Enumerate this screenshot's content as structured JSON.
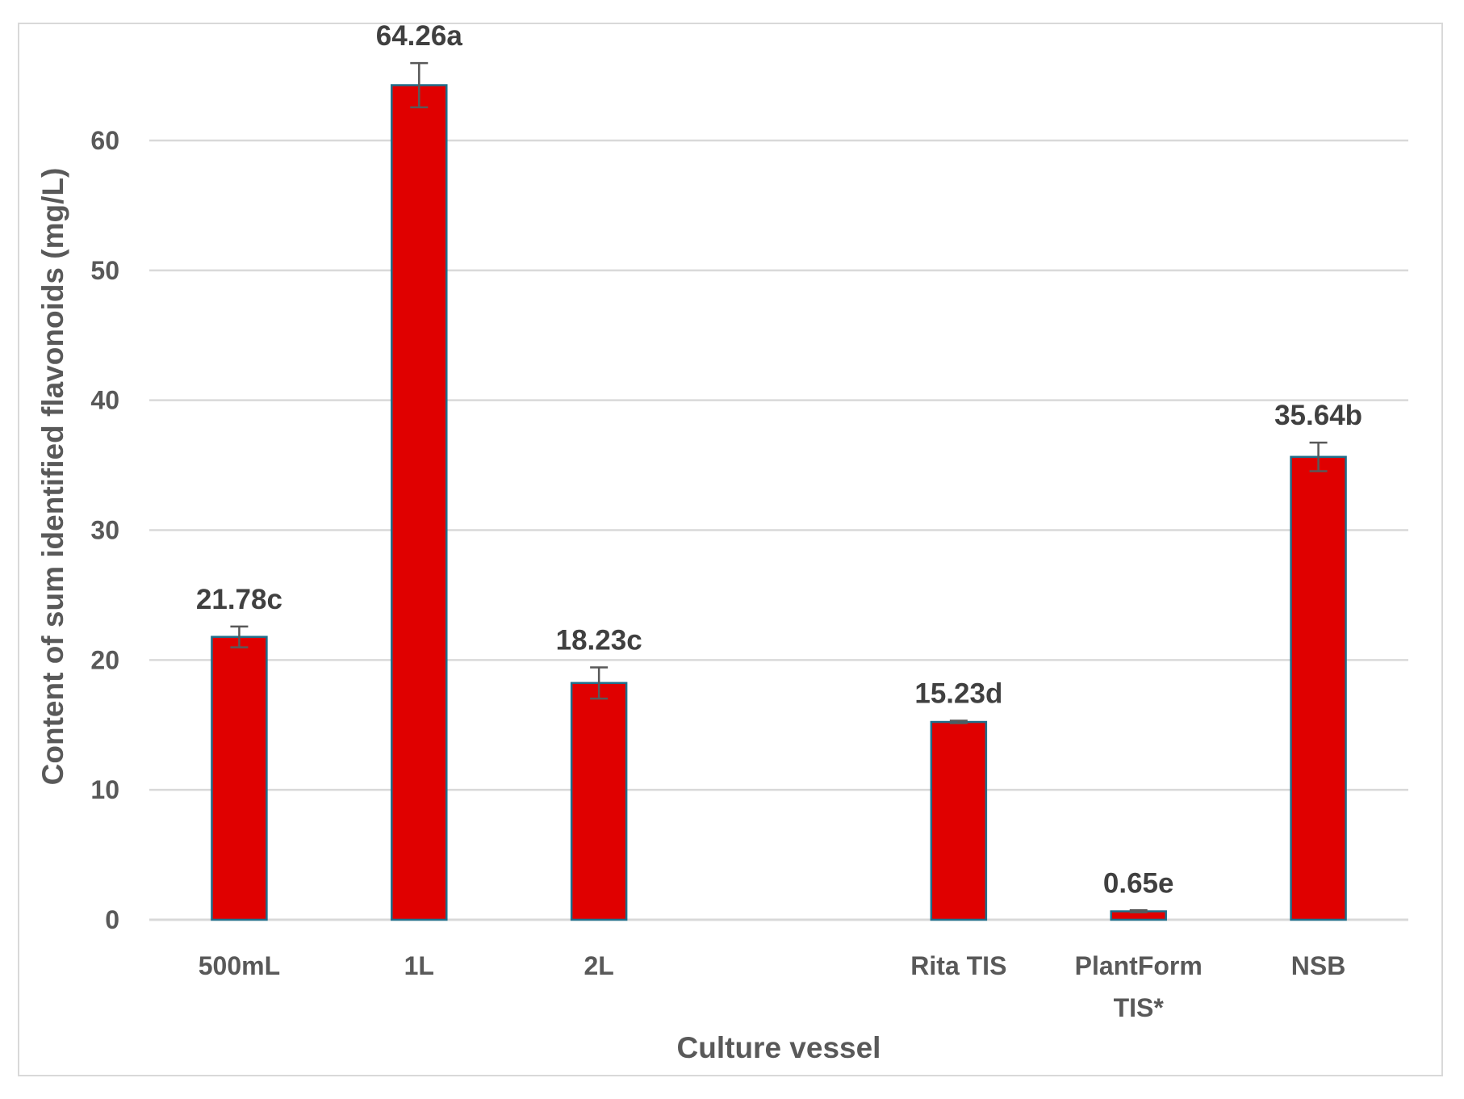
{
  "chart_data": {
    "type": "bar",
    "title": "",
    "xlabel": "Culture vessel",
    "ylabel": "Content of sum identified flavonoids (mg/L)",
    "ylim": [
      0,
      70
    ],
    "yticks": [
      0,
      10,
      20,
      30,
      40,
      50,
      60
    ],
    "grid": true,
    "legend": "none",
    "bar_color": "#e00000",
    "bar_edge_color": "#1f6f8b",
    "error_color": "#595959",
    "gridline_color": "#d9d9d9",
    "categories": [
      [
        "500mL"
      ],
      [
        "1L"
      ],
      [
        "2L"
      ],
      [
        ""
      ],
      [
        "Rita TIS"
      ],
      [
        "PlantForm",
        "TIS*"
      ],
      [
        "NSB"
      ]
    ],
    "values": [
      21.78,
      64.26,
      18.23,
      null,
      15.23,
      0.65,
      35.64
    ],
    "errors": [
      0.8,
      1.7,
      1.2,
      null,
      0.1,
      0.08,
      1.1
    ],
    "data_labels": [
      "21.78c",
      "64.26a",
      "18.23c",
      "",
      "15.23d",
      "0.65e",
      "35.64b"
    ]
  }
}
